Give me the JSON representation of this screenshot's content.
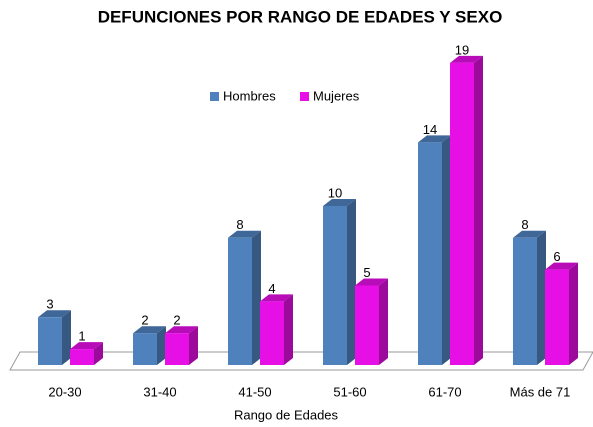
{
  "chart_data": {
    "type": "bar3d",
    "title": "DEFUNCIONES POR RANGO DE EDADES Y SEXO",
    "x_label": "Rango de Edades",
    "categories": [
      "20-30",
      "31-40",
      "41-50",
      "51-60",
      "61-70",
      "Más de 71"
    ],
    "series": [
      {
        "name": "Hombres",
        "color": "#4f81bd",
        "values": [
          3,
          2,
          8,
          10,
          14,
          8
        ]
      },
      {
        "name": "Mujeres",
        "color": "#e60fe6",
        "values": [
          1,
          2,
          4,
          5,
          19,
          6
        ]
      }
    ],
    "ylim": [
      0,
      20
    ],
    "legend": "top"
  }
}
